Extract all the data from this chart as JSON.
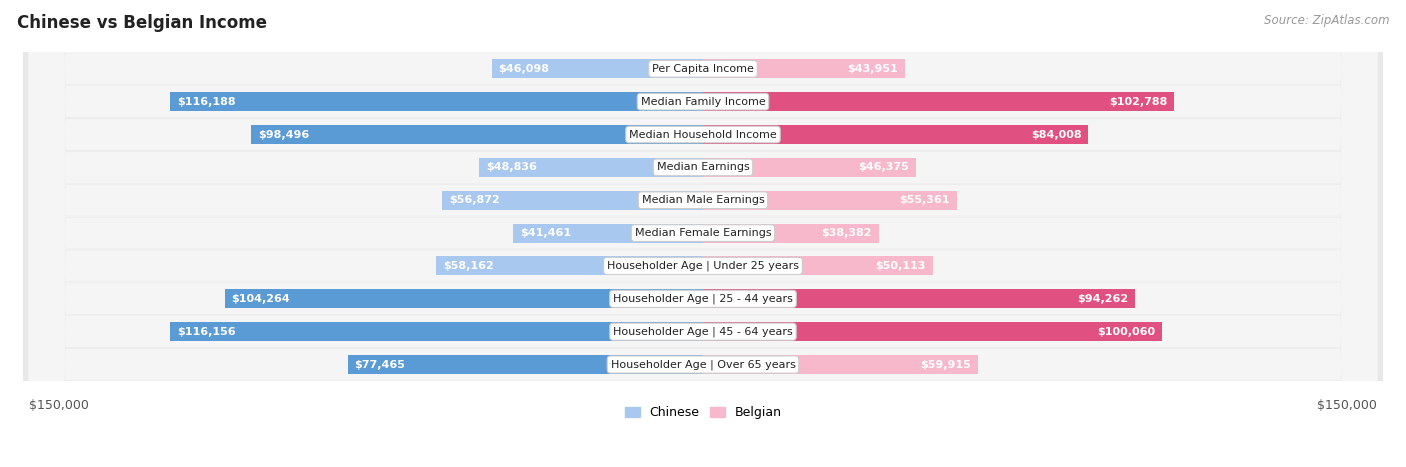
{
  "title": "Chinese vs Belgian Income",
  "source": "Source: ZipAtlas.com",
  "categories": [
    "Per Capita Income",
    "Median Family Income",
    "Median Household Income",
    "Median Earnings",
    "Median Male Earnings",
    "Median Female Earnings",
    "Householder Age | Under 25 years",
    "Householder Age | 25 - 44 years",
    "Householder Age | 45 - 64 years",
    "Householder Age | Over 65 years"
  ],
  "chinese_values": [
    46098,
    116188,
    98496,
    48836,
    56872,
    41461,
    58162,
    104264,
    116156,
    77465
  ],
  "belgian_values": [
    43951,
    102788,
    84008,
    46375,
    55361,
    38382,
    50113,
    94262,
    100060,
    59915
  ],
  "chinese_labels": [
    "$46,098",
    "$116,188",
    "$98,496",
    "$48,836",
    "$56,872",
    "$41,461",
    "$58,162",
    "$104,264",
    "$116,156",
    "$77,465"
  ],
  "belgian_labels": [
    "$43,951",
    "$102,788",
    "$84,008",
    "$46,375",
    "$55,361",
    "$38,382",
    "$50,113",
    "$94,262",
    "$100,060",
    "$59,915"
  ],
  "chinese_color_light": "#a8c8f0",
  "chinese_color_dark": "#5b9bd5",
  "belgian_color_light": "#f8b8cc",
  "belgian_color_dark": "#e05080",
  "max_value": 150000,
  "bar_height": 0.58,
  "background_color": "#ffffff",
  "legend_chinese": "Chinese",
  "legend_belgian": "Belgian",
  "xlabel_left": "$150,000",
  "xlabel_right": "$150,000",
  "title_fontsize": 12,
  "source_fontsize": 8.5,
  "label_fontsize": 8.0,
  "category_fontsize": 8.0,
  "inner_label_threshold": 0.22
}
